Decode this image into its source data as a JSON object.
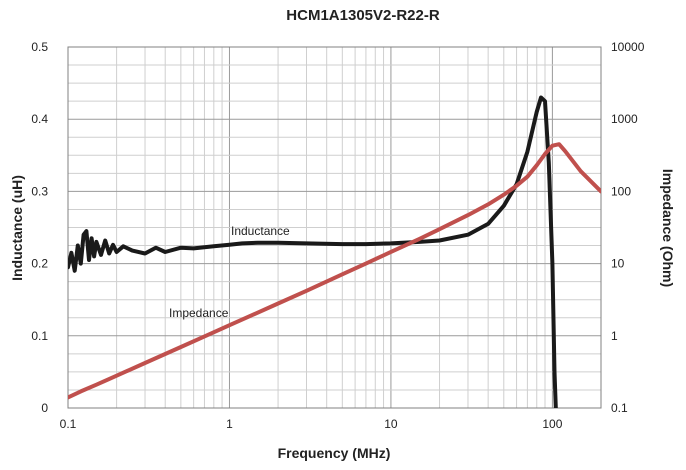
{
  "chart_data": {
    "type": "line",
    "title": "HCM1A1305V2-R22-R",
    "xlabel": "Frequency (MHz)",
    "ylabel": "Inductance (uH)",
    "y2label": "Impedance (Ohm)",
    "x_scale": "log",
    "xlim": [
      0.1,
      200
    ],
    "ylim": [
      0,
      0.5
    ],
    "y2_scale": "log",
    "y2lim": [
      0.1,
      10000
    ],
    "grid": true,
    "x_ticks": [
      "0.1",
      "1",
      "10",
      "100"
    ],
    "y_ticks": [
      "0",
      "0.1",
      "0.2",
      "0.3",
      "0.4",
      "0.5"
    ],
    "y2_ticks": [
      "0.1",
      "1",
      "10",
      "100",
      "1000",
      "10000"
    ],
    "annotations": [
      "Inductance",
      "Impedance"
    ],
    "series": [
      {
        "name": "Inductance",
        "axis": "left",
        "color": "#1a1a1a",
        "x": [
          0.1,
          0.105,
          0.11,
          0.115,
          0.12,
          0.125,
          0.13,
          0.135,
          0.14,
          0.145,
          0.15,
          0.16,
          0.17,
          0.18,
          0.19,
          0.2,
          0.22,
          0.25,
          0.3,
          0.35,
          0.4,
          0.5,
          0.6,
          0.8,
          1,
          1.2,
          1.5,
          2,
          3,
          5,
          7,
          10,
          15,
          20,
          30,
          40,
          50,
          60,
          70,
          80,
          85,
          90,
          95,
          100,
          103,
          107
        ],
        "values": [
          0.195,
          0.215,
          0.19,
          0.225,
          0.2,
          0.24,
          0.245,
          0.205,
          0.235,
          0.21,
          0.23,
          0.212,
          0.232,
          0.214,
          0.226,
          0.216,
          0.224,
          0.218,
          0.214,
          0.222,
          0.216,
          0.222,
          0.221,
          0.224,
          0.226,
          0.228,
          0.229,
          0.229,
          0.228,
          0.227,
          0.227,
          0.228,
          0.23,
          0.232,
          0.24,
          0.255,
          0.28,
          0.31,
          0.355,
          0.41,
          0.43,
          0.425,
          0.34,
          0.2,
          0.05,
          -0.05
        ]
      },
      {
        "name": "Impedance",
        "axis": "right",
        "color": "#c0504d",
        "x": [
          0.1,
          0.12,
          0.15,
          0.2,
          0.3,
          0.5,
          0.7,
          1,
          2,
          3,
          5,
          7,
          10,
          15,
          20,
          30,
          40,
          50,
          60,
          70,
          80,
          90,
          100,
          110,
          120,
          150,
          200
        ],
        "values": [
          0.14,
          0.17,
          0.21,
          0.28,
          0.42,
          0.7,
          0.98,
          1.4,
          2.8,
          4.2,
          7.1,
          10,
          14.5,
          22,
          30,
          47,
          66,
          90,
          120,
          160,
          230,
          330,
          430,
          450,
          360,
          190,
          100
        ]
      }
    ]
  }
}
